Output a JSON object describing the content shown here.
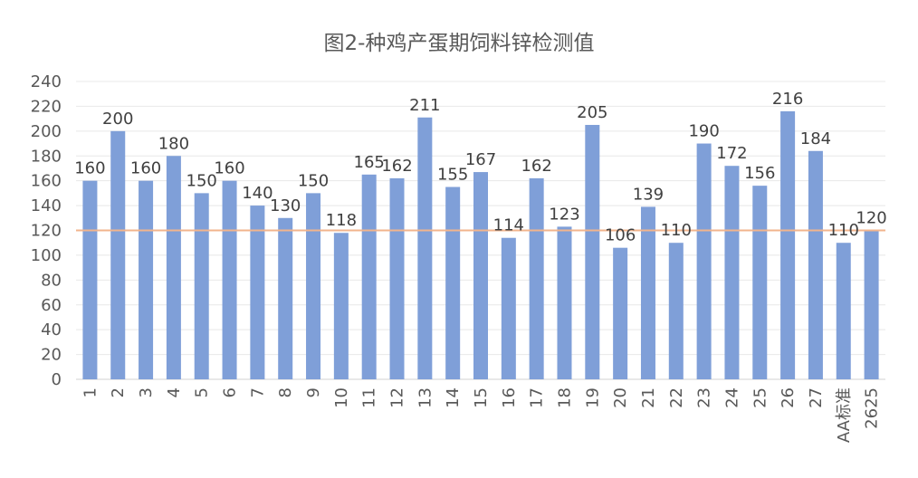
{
  "chart_data": {
    "type": "bar",
    "title": "图2-种鸡产蛋期饲料锌检测值",
    "categories": [
      "1",
      "2",
      "3",
      "4",
      "5",
      "6",
      "7",
      "8",
      "9",
      "10",
      "11",
      "12",
      "13",
      "14",
      "15",
      "16",
      "17",
      "18",
      "19",
      "20",
      "21",
      "22",
      "23",
      "24",
      "25",
      "26",
      "27",
      "AA标准",
      "2625"
    ],
    "series": [
      {
        "values": [
          160,
          200,
          160,
          180,
          150,
          160,
          140,
          130,
          150,
          118,
          165,
          162,
          211,
          155,
          167,
          114,
          162,
          123,
          205,
          106,
          139,
          110,
          190,
          172,
          156,
          216,
          184,
          110,
          120
        ],
        "color": "#7f9fd8"
      }
    ],
    "reference_line": {
      "value": 120,
      "color": "#f2b48c"
    },
    "ylim": [
      0,
      240
    ],
    "yticks": [
      0,
      20,
      40,
      60,
      80,
      100,
      120,
      140,
      160,
      180,
      200,
      220,
      240
    ],
    "grid": true,
    "legend": "none",
    "xlabel": "",
    "ylabel": ""
  }
}
